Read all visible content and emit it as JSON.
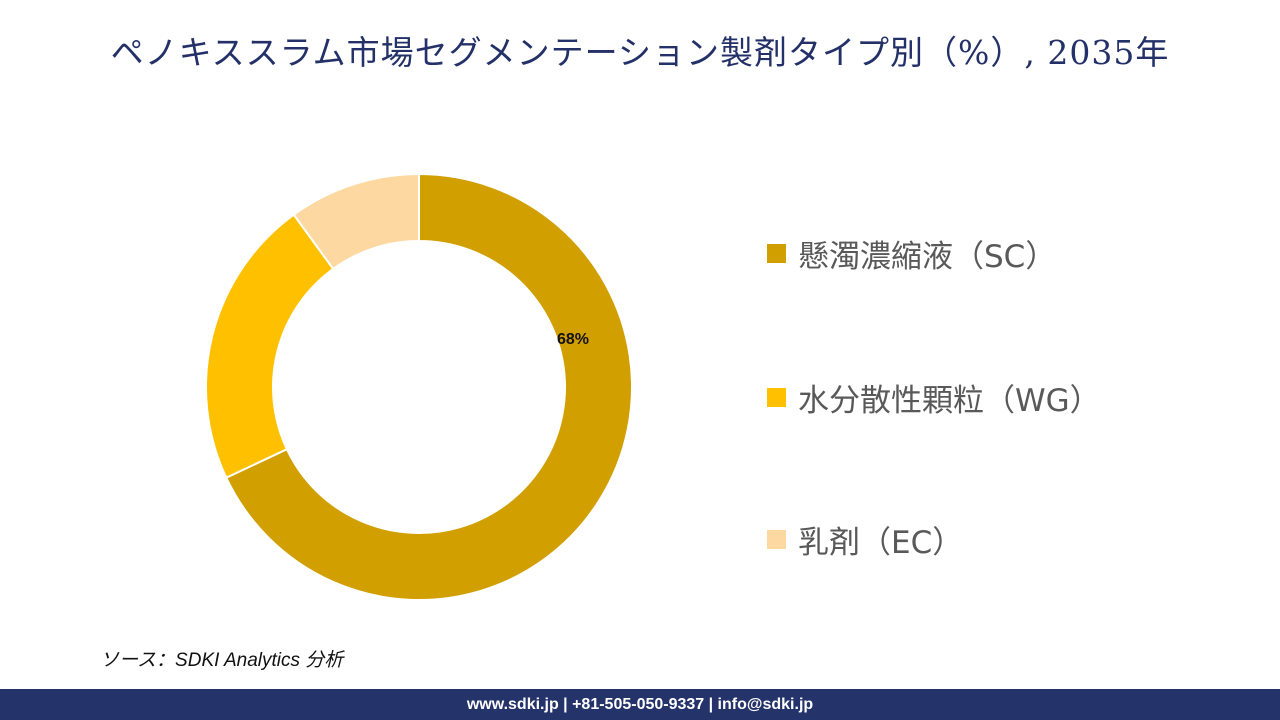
{
  "title": "ペノキススラム市場セグメンテーション製剤タイプ別（%）, 2035年",
  "chart_data": {
    "type": "pie",
    "variant": "donut",
    "title": "ペノキススラム市場セグメンテーション製剤タイプ別（%）, 2035年",
    "categories": [
      "懸濁濃縮液（SC）",
      "水分散性顆粒（WG）",
      "乳剤（EC）"
    ],
    "values": [
      68,
      22,
      10
    ],
    "unit": "%",
    "colors": [
      "#D19F00",
      "#FFC000",
      "#FDD9A1"
    ],
    "data_labels": [
      {
        "category": "懸濁濃縮液（SC）",
        "text": "68%"
      }
    ],
    "start_angle_deg": 0,
    "direction": "clockwise",
    "legend_position": "right"
  },
  "legend": [
    {
      "label": "懸濁濃縮液（SC）",
      "color": "#D19F00"
    },
    {
      "label": "水分散性顆粒（WG）",
      "color": "#FFC000"
    },
    {
      "label": "乳剤（EC）",
      "color": "#FDD9A1"
    }
  ],
  "source": "ソース：SDKI Analytics 分析",
  "footer": "www.sdki.jp | +81-505-050-9337 | info@sdki.jp"
}
